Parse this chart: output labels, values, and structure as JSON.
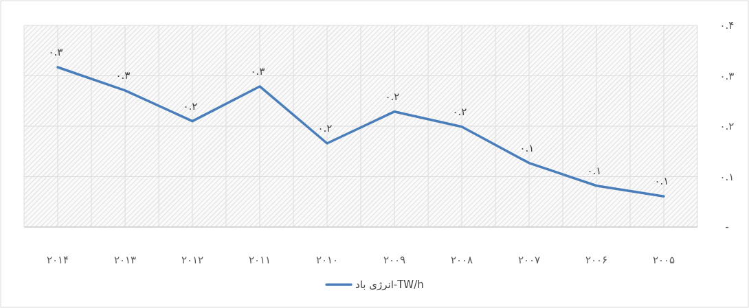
{
  "chart_data": {
    "type": "line",
    "categories": [
      "۲۰۱۴",
      "۲۰۱۳",
      "۲۰۱۲",
      "۲۰۱۱",
      "۲۰۱۰",
      "۲۰۰۹",
      "۲۰۰۸",
      "۲۰۰۷",
      "۲۰۰۶",
      "۲۰۰۵"
    ],
    "series": [
      {
        "name": "انرژی باد-TW/h",
        "color": "#4a7ebb",
        "values": [
          0.317,
          0.271,
          0.21,
          0.279,
          0.166,
          0.229,
          0.199,
          0.127,
          0.082,
          0.061
        ],
        "value_labels": [
          "۰.۳",
          "۰.۳",
          "۰.۲",
          "۰.۳",
          "۰.۲",
          "۰.۲",
          "۰.۲",
          "۰.۱",
          "۰.۱",
          "۰.۱"
        ]
      }
    ],
    "ylim": [
      0,
      0.4
    ],
    "yticks": [
      {
        "value": 0,
        "label": "-"
      },
      {
        "value": 0.1,
        "label": "۰.۱"
      },
      {
        "value": 0.2,
        "label": "۰.۲"
      },
      {
        "value": 0.3,
        "label": "۰.۳"
      },
      {
        "value": 0.4,
        "label": "۰.۴"
      }
    ],
    "grid": true,
    "legend": "bottom",
    "marker": "none",
    "line_style": "solid"
  }
}
